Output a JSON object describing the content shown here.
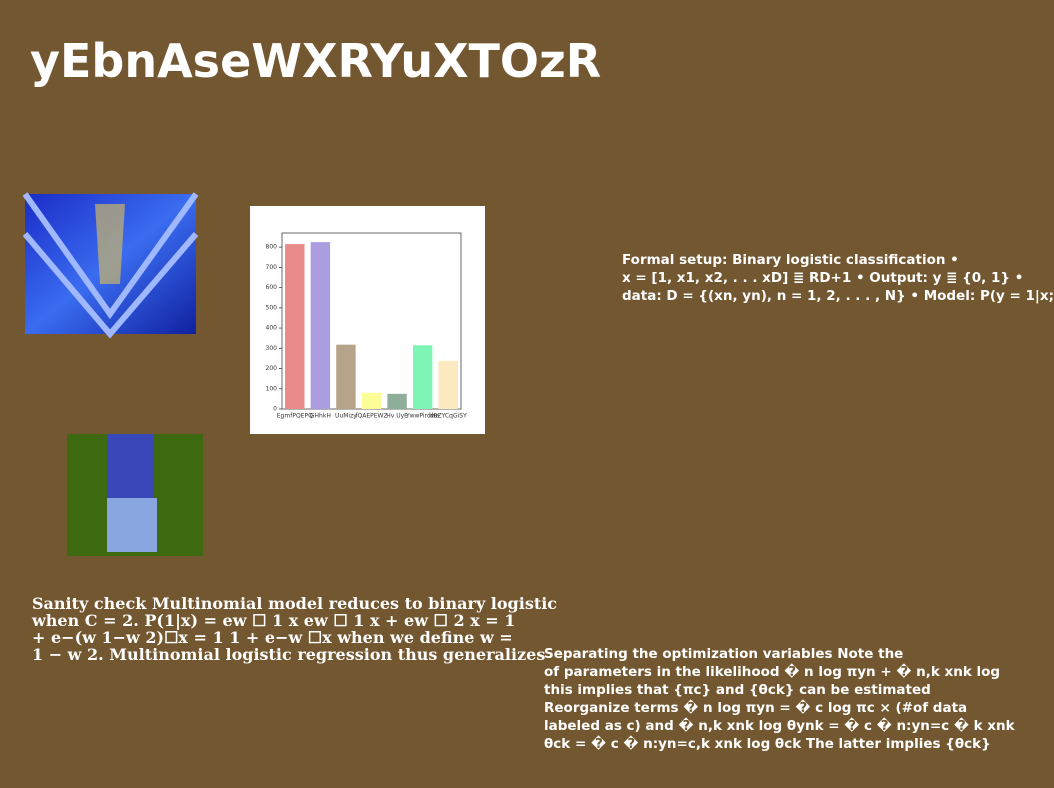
{
  "title": "yEbnAseWXRYuXTOzR",
  "right_text": [
    "Formal setup: Binary logistic classification •",
    "x = [1, x1, x2, . . . xD] ≣ RD+1 • Output: y ≣ {0, 1} •",
    "data: D = {(xn, yn), n = 1, 2, . . . , N} • Model: P(y = 1|x;"
  ],
  "left_text": [
    "Sanity check Multinomial model reduces to binary logistic",
    "when C = 2. P(1|x) = ew ☐ 1 x ew ☐ 1 x + ew ☐ 2 x = 1",
    "+ e−(w 1−w 2)☐x = 1 1 + e−w ☐x when we define w =",
    "1 − w 2. Multinomial logistic regression thus generalizes"
  ],
  "bottom_right_text": [
    "Separating the optimization variables Note the",
    "of parameters in the likelihood � n log πyn + � n,k xnk log",
    "this implies that {πc} and {θck} can be estimated",
    "Reorganize terms � n log πyn = � c log πc × (#of data",
    "labeled as c) and � n,k xnk log θynk = � c � n:yn=c � k xnk",
    "θck = � c � n:yn=c,k xnk log θck The latter implies {θck}"
  ],
  "chart_data": {
    "type": "bar",
    "categories": [
      "EgmfPQEPQ",
      "GHhkH",
      "UuMizy",
      "fQAEPEWZ",
      "Hv UyE",
      "YwwPirdwe",
      "dBZYCqGiSY"
    ],
    "values": [
      815,
      825,
      318,
      80,
      75,
      315,
      238
    ],
    "colors": [
      "#e88a88",
      "#ab9de0",
      "#b5a48a",
      "#fdfd97",
      "#8fae9a",
      "#7ef5b5",
      "#fde9c0"
    ],
    "ylim": [
      0,
      870
    ],
    "yticks": [
      0,
      100,
      200,
      300,
      400,
      500,
      600,
      700,
      800
    ]
  }
}
